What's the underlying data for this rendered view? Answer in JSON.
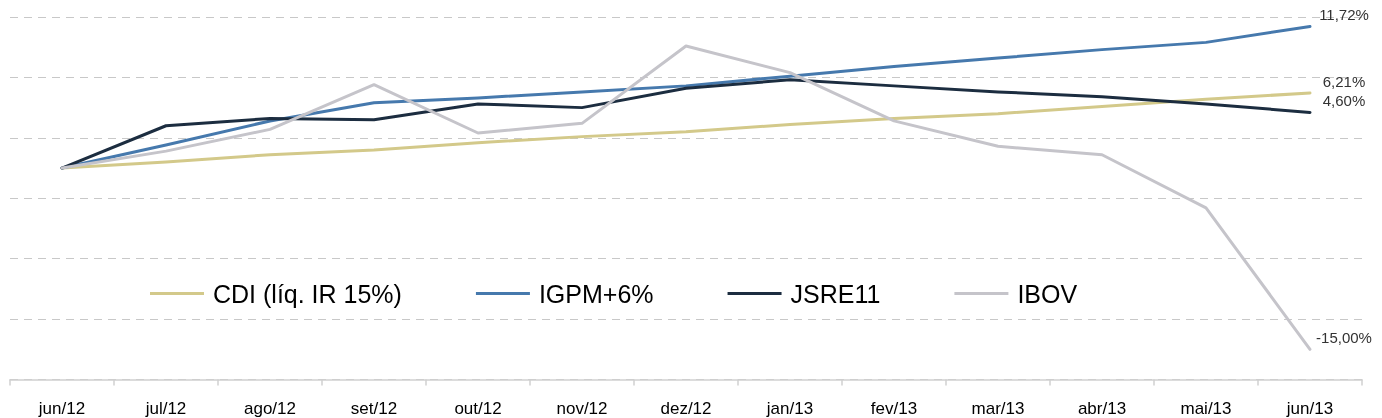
{
  "chart_data": {
    "type": "line",
    "categories": [
      "jun/12",
      "jul/12",
      "ago/12",
      "set/12",
      "out/12",
      "nov/12",
      "dez/12",
      "jan/13",
      "fev/13",
      "mar/13",
      "abr/13",
      "mai/13",
      "jun/13"
    ],
    "series": [
      {
        "name": "CDI (líq. IR 15%)",
        "color": "#d3c98a",
        "values": [
          0,
          0.5,
          1.1,
          1.5,
          2.1,
          2.6,
          3.0,
          3.6,
          4.1,
          4.5,
          5.1,
          5.7,
          6.21
        ],
        "value_labels": [
          null,
          null,
          null,
          null,
          null,
          null,
          null,
          null,
          null,
          null,
          null,
          null,
          "6,21%"
        ]
      },
      {
        "name": "IGPM+6%",
        "color": "#4679ad",
        "values": [
          0,
          1.9,
          3.9,
          5.4,
          5.8,
          6.3,
          6.8,
          7.6,
          8.4,
          9.1,
          9.8,
          10.4,
          11.72
        ],
        "value_labels": [
          null,
          null,
          null,
          null,
          null,
          null,
          null,
          null,
          null,
          null,
          null,
          null,
          "11,72%"
        ]
      },
      {
        "name": "JSRE11",
        "color": "#1c2d40",
        "values": [
          0,
          3.5,
          4.1,
          4.0,
          5.3,
          5.0,
          6.6,
          7.3,
          6.8,
          6.3,
          5.9,
          5.3,
          4.6
        ],
        "value_labels": [
          null,
          null,
          null,
          null,
          null,
          null,
          null,
          null,
          null,
          null,
          null,
          null,
          "4,60%"
        ]
      },
      {
        "name": "IBOV",
        "color": "#c5c4ca",
        "values": [
          0,
          1.4,
          3.2,
          6.9,
          2.9,
          3.7,
          10.1,
          7.9,
          3.9,
          1.8,
          1.1,
          -3.3,
          -15.0
        ],
        "value_labels": [
          null,
          null,
          null,
          null,
          null,
          null,
          null,
          null,
          null,
          null,
          null,
          null,
          "-15,00%"
        ]
      }
    ],
    "ylim": [
      -17.5,
      12.5
    ],
    "yticks": [
      {
        "value": -17.5,
        "label": null
      },
      {
        "value": -12.5,
        "label": null
      },
      {
        "value": -7.5,
        "label": null
      },
      {
        "value": -2.5,
        "label": null
      },
      {
        "value": 2.5,
        "label": null
      },
      {
        "value": 7.5,
        "label": null
      },
      {
        "value": 12.5,
        "label": null
      }
    ],
    "grid": "y",
    "legend": "bottom left",
    "tick_labels": "x",
    "marker": "none",
    "line_style": "solid"
  }
}
